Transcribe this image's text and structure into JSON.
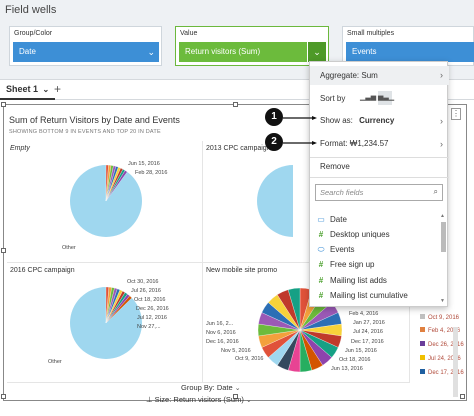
{
  "field_wells": {
    "title": "Field wells",
    "group_color": {
      "label": "Group/Color",
      "value": "Date"
    },
    "value": {
      "label": "Value",
      "value": "Return visitors (Sum)"
    },
    "small_multiples": {
      "label": "Small multiples",
      "value": "Events"
    }
  },
  "sheet": {
    "tab": "Sheet 1",
    "add": "+"
  },
  "visual": {
    "title": "Sum of Return Visitors by Date and Events",
    "subtitle": "SHOWING BOTTOM 9 IN EVENTS AND TOP 20 IN DATE",
    "group_by": "Group By: Date",
    "size": "Size: Return visitors (Sum)",
    "cells": [
      {
        "title": "Empty",
        "labels": [
          "Jun 15, 2016",
          "Feb 28, 2016",
          "Other"
        ]
      },
      {
        "title": "2013 CPC campaign",
        "labels": []
      },
      {
        "title": "2016 CPC campaign",
        "labels": [
          "Oct 30, 2016",
          "Jul 26, 2016",
          "Oct 18, 2016",
          "Dec 26, 2016",
          "Jul 12, 2016",
          "Nov 27,...",
          "Other"
        ]
      },
      {
        "title": "New mobile site promo",
        "labels": [
          "Jun 16, 2...",
          "Nov 6, 2016",
          "Dec 16, 2016",
          "Nov 5, 2016",
          "Oct 9, 2016",
          "Feb 4, 2016",
          "Jan 27, 2016",
          "Jul 24, 2016",
          "Dec 17, 2016",
          "Jun 15, 2016",
          "Oct 18, 2016",
          "Jun 13, 2016"
        ]
      }
    ],
    "legend": [
      {
        "label": "Oct 9, 2016",
        "color": "#c0c0c0"
      },
      {
        "label": "Feb 4, 2016",
        "color": "#e08040"
      },
      {
        "label": "Dec 26, 2016",
        "color": "#6a3d9a"
      },
      {
        "label": "Jul 24, 2016",
        "color": "#f0c000"
      },
      {
        "label": "Dec 17, 2016",
        "color": "#1f5fa0"
      }
    ]
  },
  "menu": {
    "aggregate": "Aggregate: Sum",
    "sort_by": "Sort by",
    "show_as": "Show as:",
    "show_as_value": "Currency",
    "format": "Format: ₩1,234.57",
    "remove": "Remove",
    "search_placeholder": "Search fields",
    "fields": [
      {
        "label": "Date",
        "type": "date"
      },
      {
        "label": "Desktop uniques",
        "type": "number"
      },
      {
        "label": "Events",
        "type": "dimension"
      },
      {
        "label": "Free sign up",
        "type": "number"
      },
      {
        "label": "Mailing list adds",
        "type": "number"
      },
      {
        "label": "Mailing list cumulative",
        "type": "number"
      }
    ]
  },
  "callouts": [
    "1",
    "2"
  ],
  "pie_colors": [
    "#9fd7ef",
    "#e0523a",
    "#f3a03c",
    "#6cbb3c",
    "#9b59b6",
    "#2c6fb5",
    "#f7d23a",
    "#c0392b",
    "#16a085",
    "#8e44ad",
    "#d35400",
    "#27ae60",
    "#e84393",
    "#34495e"
  ]
}
